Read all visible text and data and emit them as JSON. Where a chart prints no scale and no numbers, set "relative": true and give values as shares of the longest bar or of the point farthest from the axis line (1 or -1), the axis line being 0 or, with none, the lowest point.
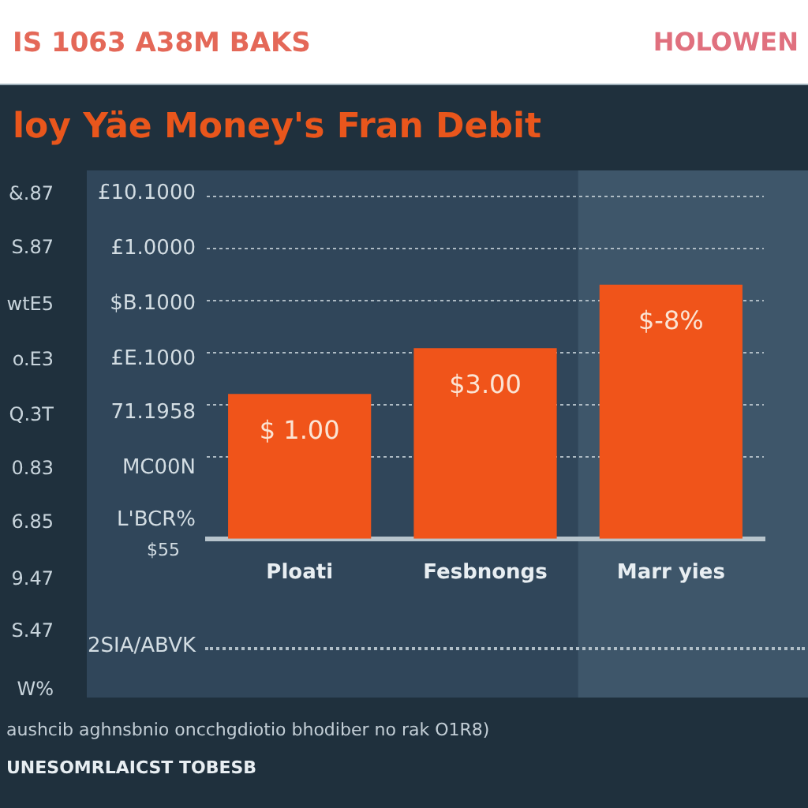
{
  "chart_data": {
    "type": "bar",
    "title": "loy Yäe Money's Fran Debit",
    "categories": [
      "Ploati",
      "Fesbnongs",
      "Marr yies"
    ],
    "values": [
      0.57,
      0.75,
      1
    ],
    "relative": true,
    "color": "#f0541a",
    "grid": "y",
    "bands": [
      {
        "axis": "x",
        "from": "Marr yies",
        "to": "Marr yies",
        "color": "#3e566a"
      }
    ],
    "annotations": [
      "IS 1063 A38M BAKS",
      "HOLOWEN",
      "&.87",
      "S.87",
      "wtE5",
      "o.E3",
      "Q.3T",
      "0.83",
      "6.85",
      "9.47",
      "S.47",
      "W%",
      "£10.1000",
      "£1.0000",
      "$B.1000",
      "£E.1000",
      "71.1958",
      "MC00N",
      "L'BCR%",
      "$55",
      "2SIA/ABVK",
      "aushcib aghnsbnio oncchgdiotio bhodiber no rak O1R8)",
      "UNESOMRLAICST TOBESB",
      {
        "text": "$ 1.00",
        "x": "Ploati",
        "y": 0.57
      },
      {
        "text": "$3.00",
        "x": "Fesbnongs",
        "y": 0.75
      },
      {
        "text": "$-8%",
        "x": "Marr yies",
        "y": 1
      }
    ]
  }
}
